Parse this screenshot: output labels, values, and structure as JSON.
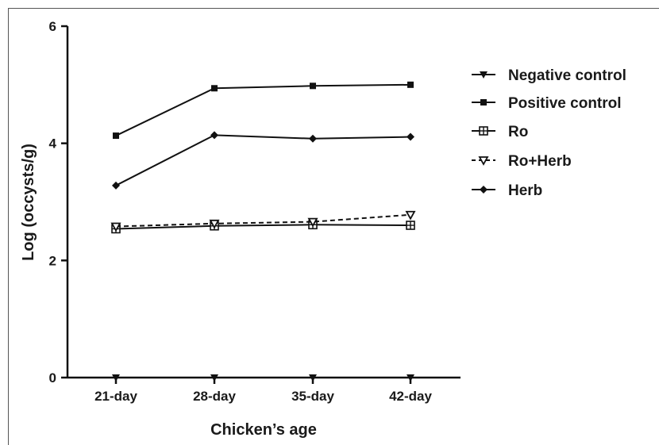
{
  "chart_data": {
    "type": "line",
    "title": "",
    "xlabel": "Chicken’s age",
    "ylabel": "Log (occysts/g)",
    "categories": [
      "21-day",
      "28-day",
      "35-day",
      "42-day"
    ],
    "ylim": [
      0,
      6
    ],
    "yticks": [
      "0",
      "2",
      "4",
      "6"
    ],
    "grid": false,
    "legend_position": "right",
    "series": [
      {
        "name": "Negative control",
        "marker": "triangle-down",
        "dash": "solid",
        "values": [
          0,
          0,
          0,
          0
        ]
      },
      {
        "name": "Positive control",
        "marker": "square",
        "dash": "solid",
        "values": [
          4.13,
          4.94,
          4.98,
          5.0
        ]
      },
      {
        "name": "Ro",
        "marker": "square-cross",
        "dash": "solid",
        "values": [
          2.54,
          2.59,
          2.61,
          2.6
        ]
      },
      {
        "name": "Ro+Herb",
        "marker": "triangle-down-open",
        "dash": "dashed",
        "values": [
          2.58,
          2.63,
          2.66,
          2.78
        ]
      },
      {
        "name": "Herb",
        "marker": "diamond",
        "dash": "solid",
        "values": [
          3.28,
          4.14,
          4.08,
          4.11
        ]
      }
    ]
  }
}
